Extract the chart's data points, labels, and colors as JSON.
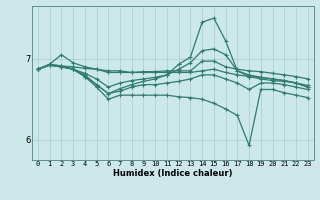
{
  "xlabel": "Humidex (Indice chaleur)",
  "background_color": "#cce8e8",
  "line_color": "#2e7d6e",
  "grid_color": "#aacccc",
  "xlim": [
    -0.5,
    23.5
  ],
  "ylim": [
    5.75,
    7.65
  ],
  "yticks": [
    6,
    7
  ],
  "xticks": [
    0,
    1,
    2,
    3,
    4,
    5,
    6,
    7,
    8,
    9,
    10,
    11,
    12,
    13,
    14,
    15,
    16,
    17,
    18,
    19,
    20,
    21,
    22,
    23
  ],
  "series": [
    [
      6.87,
      6.93,
      7.05,
      6.95,
      6.9,
      6.87,
      6.83,
      6.83,
      6.83,
      6.84,
      6.84,
      6.85,
      6.85,
      6.85,
      6.97,
      6.97,
      6.9,
      6.87,
      6.85,
      6.84,
      6.82,
      6.8,
      6.78,
      6.75
    ],
    [
      6.87,
      6.92,
      6.9,
      6.87,
      6.78,
      6.68,
      6.57,
      6.6,
      6.65,
      6.68,
      6.68,
      6.7,
      6.72,
      6.75,
      6.8,
      6.8,
      6.75,
      6.7,
      6.62,
      6.7,
      6.7,
      6.68,
      6.65,
      6.62
    ],
    [
      6.87,
      6.93,
      6.91,
      6.87,
      6.8,
      6.68,
      6.57,
      6.63,
      6.68,
      6.72,
      6.75,
      6.8,
      6.93,
      7.02,
      7.45,
      7.5,
      7.22,
      6.85,
      6.8,
      6.77,
      6.75,
      6.73,
      6.7,
      6.65
    ],
    [
      6.87,
      6.93,
      6.91,
      6.9,
      6.88,
      6.87,
      6.85,
      6.85,
      6.83,
      6.83,
      6.83,
      6.83,
      6.83,
      6.83,
      6.85,
      6.87,
      6.83,
      6.8,
      6.78,
      6.75,
      6.73,
      6.72,
      6.7,
      6.67
    ],
    [
      6.87,
      6.92,
      6.9,
      6.87,
      6.82,
      6.75,
      6.65,
      6.7,
      6.73,
      6.75,
      6.77,
      6.8,
      6.87,
      6.95,
      7.1,
      7.12,
      7.05,
      6.85,
      6.78,
      6.77,
      6.75,
      6.73,
      6.7,
      6.65
    ],
    [
      6.87,
      6.92,
      6.9,
      6.87,
      6.78,
      6.65,
      6.5,
      6.55,
      6.55,
      6.55,
      6.55,
      6.55,
      6.53,
      6.52,
      6.5,
      6.45,
      6.38,
      6.3,
      5.93,
      6.62,
      6.62,
      6.58,
      6.55,
      6.52
    ]
  ]
}
